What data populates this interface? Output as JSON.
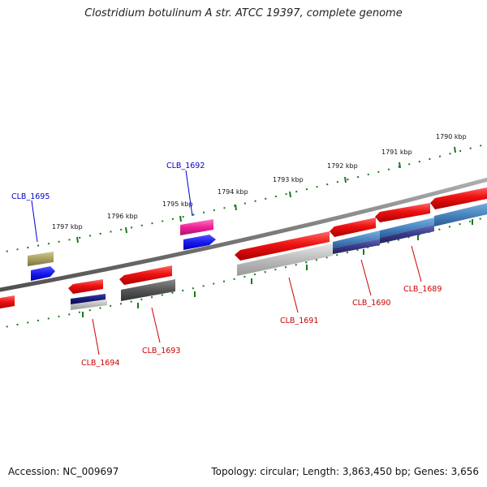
{
  "title": "Clostridium botulinum A str. ATCC 19397, complete genome",
  "footer": {
    "accession": "Accession: NC_009697",
    "summary": "Topology: circular; Length: 3,863,450 bp; Genes: 3,656"
  },
  "colors": {
    "backbone": "#7a7a7a",
    "tick": "#1a7a1a",
    "label_forward": "#0000cc",
    "label_reverse": "#cc0000",
    "gene_red": "#ee1111",
    "gene_blue": "#1a1aee",
    "gene_magenta": "#ee2299",
    "gene_olive": "#a8a060",
    "gene_navy": "#1a1a7a",
    "gene_grey": "#8a8a8a",
    "gene_darkgrey": "#555555",
    "gene_steel": "#4a86c0",
    "gene_indigo": "#3a3a8a"
  },
  "ticks": [
    "1797 kbp",
    "1796 kbp",
    "1795 kbp",
    "1794 kbp",
    "1793 kbp",
    "1792 kbp",
    "1791 kbp",
    "1790 kbp"
  ],
  "genes": [
    {
      "label": "CLB_1695",
      "strand": "forward"
    },
    {
      "label": "CLB_1692",
      "strand": "forward"
    },
    {
      "label": "CLB_1694",
      "strand": "reverse"
    },
    {
      "label": "CLB_1693",
      "strand": "reverse"
    },
    {
      "label": "CLB_1691",
      "strand": "reverse"
    },
    {
      "label": "CLB_1690",
      "strand": "reverse"
    },
    {
      "label": "CLB_1689",
      "strand": "reverse"
    }
  ]
}
